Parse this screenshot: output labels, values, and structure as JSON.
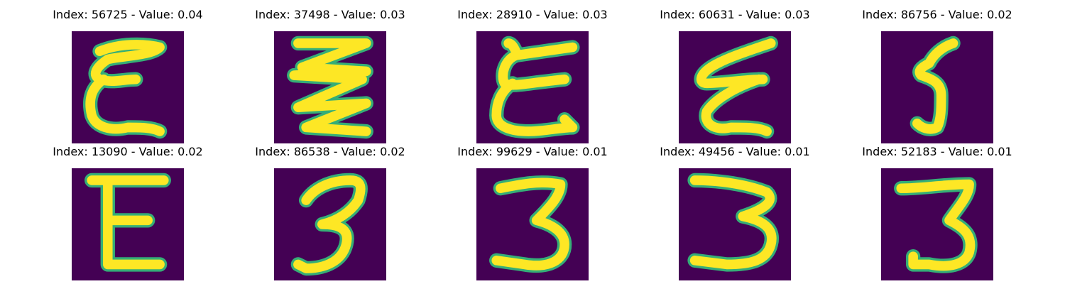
{
  "colors": {
    "background": "#440154",
    "glyph_core": "#fde725",
    "glyph_edge": "#21918c",
    "glyph_mid": "#5ec962"
  },
  "samples": [
    {
      "title": "Index: 56725 - Value: 0.04",
      "glyph": "epsilon-wide"
    },
    {
      "title": "Index: 37498 - Value: 0.03",
      "glyph": "zigzag"
    },
    {
      "title": "Index: 28910 - Value: 0.03",
      "glyph": "epsilon-loop"
    },
    {
      "title": "Index: 60631 - Value: 0.03",
      "glyph": "epsilon-slant"
    },
    {
      "title": "Index: 86756 - Value: 0.02",
      "glyph": "five"
    },
    {
      "title": "Index: 13090 - Value: 0.02",
      "glyph": "capital-e"
    },
    {
      "title": "Index: 86538 - Value: 0.02",
      "glyph": "three-a"
    },
    {
      "title": "Index: 99629 - Value: 0.01",
      "glyph": "three-b"
    },
    {
      "title": "Index: 49456 - Value: 0.01",
      "glyph": "three-c"
    },
    {
      "title": "Index: 52183 - Value: 0.01",
      "glyph": "three-d"
    }
  ]
}
